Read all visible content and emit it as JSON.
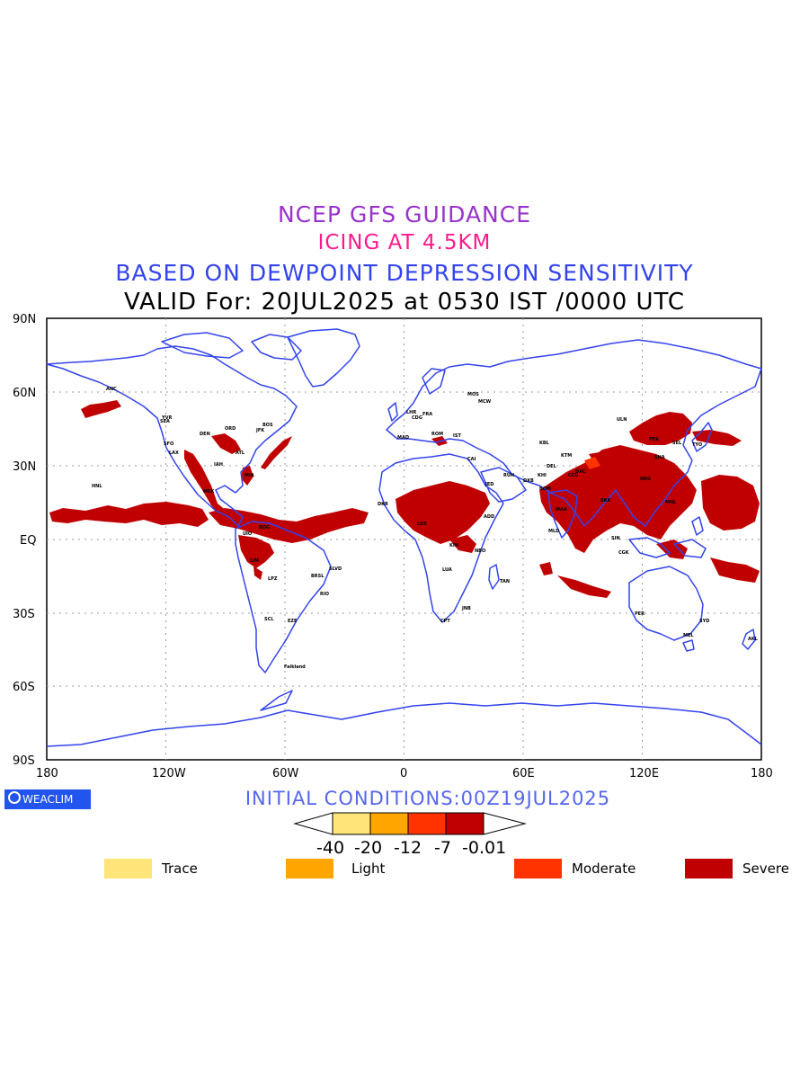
{
  "title": {
    "line1": "NCEP GFS GUIDANCE",
    "line2": "ICING AT 4.5KM",
    "line3": "BASED ON DEWPOINT DEPRESSION SENSITIVITY",
    "line4": "VALID For: 20JUL2025 at 0530 IST /0000 UTC"
  },
  "axes": {
    "lat_labels": [
      "90N",
      "60N",
      "30N",
      "EQ",
      "30S",
      "60S",
      "90S"
    ],
    "lon_labels": [
      "180",
      "120W",
      "60W",
      "0",
      "60E",
      "120E",
      "180"
    ]
  },
  "logo": "WEACLIM",
  "initial_conditions": "INITIAL CONDITIONS:00Z19JUL2025",
  "colorbar": {
    "labels": [
      "-40",
      "-20",
      "-12",
      "-7",
      "-0.01"
    ],
    "colors": [
      "#ffe47a",
      "#ffa500",
      "#ff3300",
      "#c00000"
    ]
  },
  "legend": [
    {
      "label": "Trace",
      "color": "#ffe47a"
    },
    {
      "label": "Light",
      "color": "#ffa500"
    },
    {
      "label": "Moderate",
      "color": "#ff3300"
    },
    {
      "label": "Severe",
      "color": "#c00000"
    }
  ],
  "colors": {
    "coastline": "#3344ee",
    "severe": "#c00000",
    "moderate": "#ff3300"
  },
  "stations": [
    "ANC",
    "YVR",
    "SEA",
    "SFO",
    "LAX",
    "DEN",
    "ORD",
    "JFK",
    "BOS",
    "ATL",
    "MIA",
    "IAH",
    "MEX",
    "HNL",
    "BOG",
    "UIO",
    "LIM",
    "LPZ",
    "BRSL",
    "SLVD",
    "RIO",
    "SCL",
    "EZE",
    "Falkland",
    "MCW",
    "LHR",
    "CDG",
    "MAD",
    "FRA",
    "ROM",
    "CAI",
    "IST",
    "KBL",
    "DEL",
    "BOM",
    "MAA",
    "CCU",
    "DAC",
    "KTM",
    "BKK",
    "SIN",
    "HKG",
    "PEK",
    "SHA",
    "TYO",
    "SEL",
    "ULN",
    "MNL",
    "CGK",
    "SYD",
    "MEL",
    "PER",
    "AKL",
    "JNB",
    "CPT",
    "NBO",
    "ADD",
    "DKR",
    "LOS",
    "KIN",
    "LUA",
    "TAN",
    "MLD",
    "JED",
    "RUH",
    "DXB",
    "KHI",
    "MOS"
  ]
}
